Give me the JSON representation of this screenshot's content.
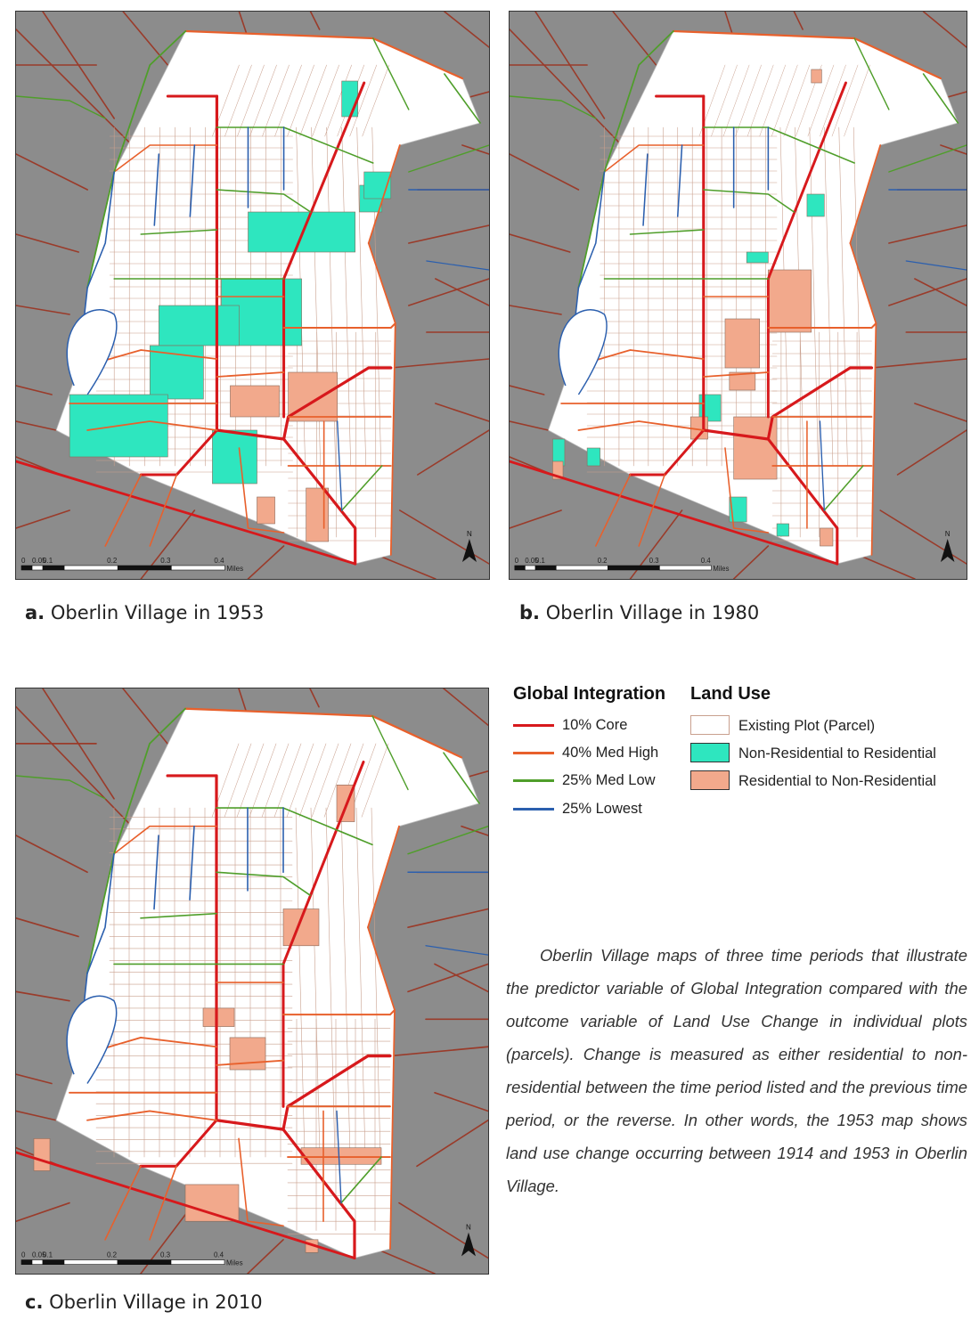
{
  "maps": [
    {
      "id": "a",
      "label": "a.",
      "title": "Oberlin Village in 1953"
    },
    {
      "id": "b",
      "label": "b.",
      "title": "Oberlin Village in 1980"
    },
    {
      "id": "c",
      "label": "c.",
      "title": "Oberlin Village in 2010"
    }
  ],
  "scalebar": {
    "ticks": [
      "0",
      "0.05",
      "0.1",
      "0.2",
      "0.3",
      "0.4"
    ],
    "unit": "Miles"
  },
  "north_arrow": "N",
  "legend": {
    "integration_title": "Global Integration",
    "landuse_title": "Land Use",
    "integration_items": [
      {
        "label": "10% Core",
        "color": "#d7191c"
      },
      {
        "label": "40% Med High",
        "color": "#e8602c"
      },
      {
        "label": "25% Med Low",
        "color": "#4f9e2a"
      },
      {
        "label": "25% Lowest",
        "color": "#2b5fae"
      }
    ],
    "landuse_items": [
      {
        "label": "Existing Plot (Parcel)",
        "color": "#ffffff",
        "border": "#c9a08e"
      },
      {
        "label": "Non-Residential to Residential",
        "color": "#2ee6bf"
      },
      {
        "label": "Residential to Non-Residential",
        "color": "#f2a98c"
      }
    ]
  },
  "description": "Oberlin Village maps of three time periods that illustrate the predictor variable of Global Integration compared with the outcome variable of Land Use Change in individual plots (parcels). Change is measured as either residential to non-residential between the time period listed and the previous time period, or the reverse. In other words, the 1953 map shows land use change occurring between 1914 and 1953 in Oberlin Village.",
  "colors": {
    "background_roads": "#9a3b2a",
    "map_background": "#8c8c8c",
    "parcel_stroke": "#c9a08e"
  }
}
